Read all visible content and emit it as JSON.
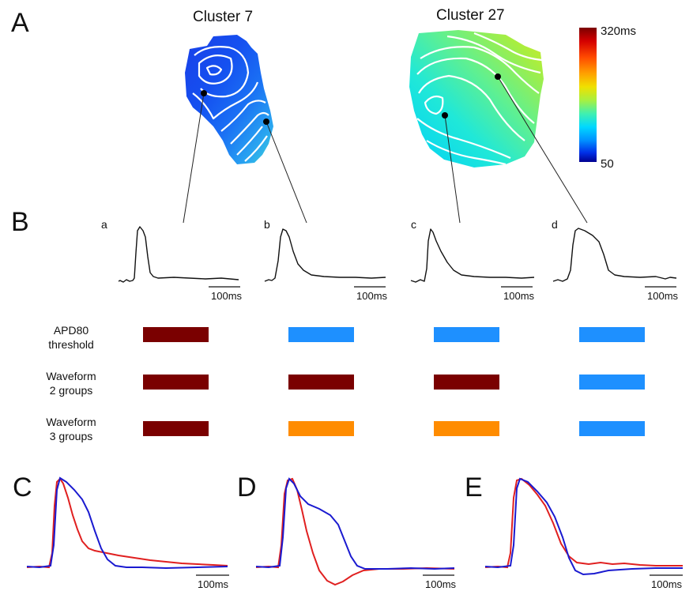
{
  "panel_labels": {
    "A": "A",
    "B": "B",
    "C": "C",
    "D": "D",
    "E": "E"
  },
  "maps": {
    "cluster7_title": "Cluster 7",
    "cluster27_title": "Cluster 27"
  },
  "colorbar": {
    "max_label": "320ms",
    "min_label": "50",
    "colors": [
      "#7a0000",
      "#d40000",
      "#ff4a00",
      "#ffa000",
      "#f0e000",
      "#a8f040",
      "#40f0b0",
      "#00d8ff",
      "#0090ff",
      "#0030e8",
      "#000090"
    ]
  },
  "traces": {
    "a_label": "a",
    "b_label": "b",
    "c_label": "c",
    "d_label": "d",
    "scalebar": "100ms"
  },
  "classification": {
    "rows": [
      {
        "label_line1": "APD80",
        "label_line2": "threshold",
        "colors": [
          "#7a0000",
          "#1e90ff",
          "#1e90ff",
          "#1e90ff"
        ]
      },
      {
        "label_line1": "Waveform",
        "label_line2": "2 groups",
        "colors": [
          "#7a0000",
          "#7a0000",
          "#7a0000",
          "#1e90ff"
        ]
      },
      {
        "label_line1": "Waveform",
        "label_line2": "3 groups",
        "colors": [
          "#7a0000",
          "#ff8c00",
          "#ff8c00",
          "#1e90ff"
        ]
      }
    ]
  },
  "overlays": {
    "scalebar": "100ms",
    "red_color": "#e02020",
    "blue_color": "#1a1ad0"
  }
}
